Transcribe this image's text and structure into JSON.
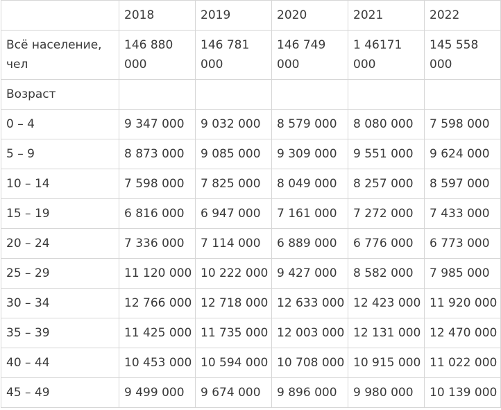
{
  "header": {
    "years": [
      "2018",
      "2019",
      "2020",
      "2021",
      "2022"
    ]
  },
  "total_row": {
    "label": "Всё население, чел",
    "values": [
      "146 880 000",
      "146 781 000",
      "146 749 000",
      "1 46171 000",
      "145 558 000"
    ]
  },
  "section_label": "Возраст",
  "age_rows": [
    {
      "range": "0 – 4",
      "values": [
        "9 347 000",
        "9 032 000",
        "8 579 000",
        "8 080 000",
        "7 598 000"
      ]
    },
    {
      "range": "5 – 9",
      "values": [
        "8 873 000",
        "9 085 000",
        "9 309 000",
        "9 551 000",
        "9 624 000"
      ]
    },
    {
      "range": "10 – 14",
      "values": [
        "7 598 000",
        "7 825 000",
        "8 049 000",
        "8 257 000",
        "8 597 000"
      ]
    },
    {
      "range": "15 – 19",
      "values": [
        "6 816 000",
        "6 947 000",
        "7 161 000",
        "7 272 000",
        "7 433 000"
      ]
    },
    {
      "range": "20 – 24",
      "values": [
        "7 336 000",
        "7 114 000",
        "6 889 000",
        "6 776 000",
        "6 773 000"
      ]
    },
    {
      "range": "25 – 29",
      "values": [
        "11 120 000",
        "10 222 000",
        "9 427 000",
        "8 582 000",
        "7 985 000"
      ]
    },
    {
      "range": "30 – 34",
      "values": [
        "12 766 000",
        "12 718 000",
        "12 633 000",
        "12 423 000",
        "11 920 000"
      ]
    },
    {
      "range": "35 – 39",
      "values": [
        "11 425 000",
        "11 735 000",
        "12 003 000",
        "12 131 000",
        "12 470 000"
      ]
    },
    {
      "range": "40 – 44",
      "values": [
        "10 453 000",
        "10 594 000",
        "10 708 000",
        "10 915 000",
        "11 022 000"
      ]
    },
    {
      "range": "45 – 49",
      "values": [
        "9 499 000",
        "9 674 000",
        "9 896 000",
        "9 980 000",
        "10 139 000"
      ]
    }
  ]
}
